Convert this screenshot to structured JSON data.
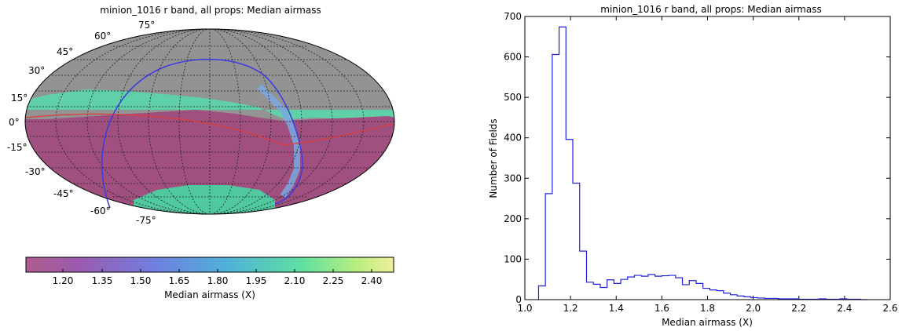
{
  "chart_data": [
    {
      "type": "heatmap",
      "projection": "mollweide",
      "title": "minion_1016 r band, all props: Median airmass",
      "lat_labels": [
        "75°",
        "60°",
        "45°",
        "30°",
        "15°",
        "0°",
        "-15°",
        "-30°",
        "-45°",
        "-60°",
        "-75°"
      ],
      "colorbar": {
        "label": "Median airmass (X)",
        "ticks": [
          "1.20",
          "1.35",
          "1.50",
          "1.65",
          "1.80",
          "1.95",
          "2.10",
          "2.25",
          "2.40"
        ],
        "range": [
          1.05,
          2.48
        ],
        "colormap": "viridis"
      },
      "colors": {
        "no_data": "#939393",
        "low_value": "#a0507e",
        "galactic_plane": "#3a3ae0",
        "ecliptic": "#e03a3a"
      },
      "grid": true
    },
    {
      "type": "histogram",
      "title": "minion_1016 r band, all props: Median airmass",
      "xlabel": "Median airmass (X)",
      "ylabel": "Number of Fields",
      "xlim": [
        1.0,
        2.6
      ],
      "ylim": [
        0,
        700
      ],
      "xticks": [
        "1.0",
        "1.2",
        "1.4",
        "1.6",
        "1.8",
        "2.0",
        "2.2",
        "2.4",
        "2.6"
      ],
      "yticks": [
        "0",
        "100",
        "200",
        "300",
        "400",
        "500",
        "600",
        "700"
      ],
      "bin_edges": [
        1.06,
        1.09,
        1.12,
        1.15,
        1.18,
        1.21,
        1.24,
        1.27,
        1.3,
        1.33,
        1.36,
        1.39,
        1.42,
        1.45,
        1.48,
        1.51,
        1.54,
        1.57,
        1.6,
        1.63,
        1.66,
        1.69,
        1.72,
        1.75,
        1.78,
        1.81,
        1.84,
        1.87,
        1.9,
        1.93,
        1.96,
        1.99,
        2.02,
        2.05,
        2.08,
        2.11,
        2.14,
        2.17,
        2.2,
        2.23,
        2.26,
        2.29,
        2.32,
        2.35,
        2.38,
        2.41,
        2.44,
        2.47,
        2.5
      ],
      "counts": [
        34,
        262,
        606,
        674,
        396,
        288,
        120,
        43,
        38,
        30,
        49,
        40,
        50,
        56,
        60,
        58,
        62,
        58,
        59,
        60,
        54,
        37,
        47,
        40,
        28,
        24,
        22,
        16,
        12,
        9,
        7,
        5,
        4,
        3,
        3,
        2,
        2,
        2,
        1,
        1,
        1,
        2,
        1,
        1,
        2,
        1,
        1,
        0
      ],
      "color": "#2020e0",
      "grid": false
    }
  ]
}
